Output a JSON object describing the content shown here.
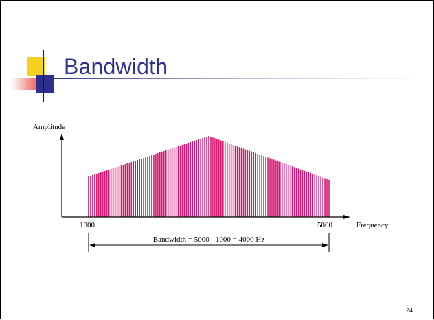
{
  "slide": {
    "title": "Bandwidth",
    "page_number": "24"
  },
  "figure": {
    "y_axis_label": "Amplitude",
    "x_axis_label": "Frequency",
    "low_freq_label": "1000",
    "high_freq_label": "5000",
    "bandwidth_caption": "Bandwidth = 5000 - 1000 = 4000 Hz",
    "spectrum": {
      "low_freq": 1000,
      "high_freq": 5000,
      "peak_freq": 3000,
      "amplitude_at_low": 0.5,
      "amplitude_at_peak": 1.0,
      "amplitude_at_high": 0.46,
      "color": "#d6156e"
    }
  },
  "colors": {
    "title": "#2e2e8f",
    "deco_yellow": "#f5d21e",
    "deco_red": "#e8362b",
    "deco_blue": "#2e2e8f"
  }
}
